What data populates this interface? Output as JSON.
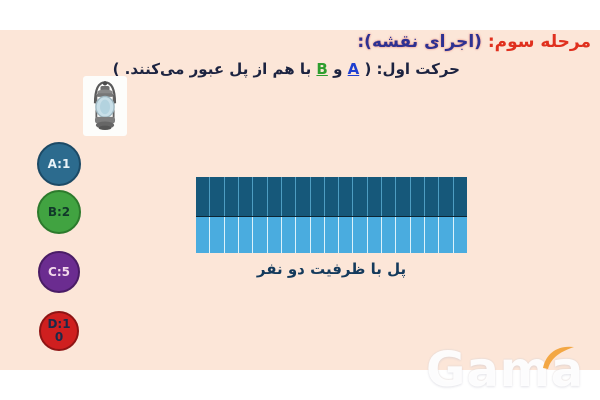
{
  "slide": {
    "background_color": "#fce6d8",
    "title": {
      "part1": "مرحله سوم:",
      "part2": " (اجرای نقشه):",
      "part1_color": "#e0301e",
      "part2_color": "#2e3192"
    },
    "subtitle": {
      "prefix": "حرکت اول: ( ",
      "person_a": "A",
      "separator": " و ",
      "person_b": "B",
      "suffix": " با هم از پل عبور می‌کنند. )",
      "text_color": "#1c2340",
      "person_a_color": "#1f3fd0",
      "person_b_color": "#2e9e2e"
    }
  },
  "tokens": [
    {
      "label": "A:1",
      "fill": "#2c6b8e",
      "border": "#1c4a66",
      "text_color": "#e9f3f8"
    },
    {
      "label": "B:2",
      "fill": "#41a341",
      "border": "#2c7a2c",
      "text_color": "#11382a"
    },
    {
      "label": "C:5",
      "fill": "#6b2c90",
      "border": "#4a1c66",
      "text_color": "#f2d7ea"
    },
    {
      "label": "D:1",
      "label2": "0",
      "fill": "#cf1f1f",
      "border": "#8f1414",
      "text_color": "#1a2a4a"
    }
  ],
  "bridge": {
    "stripe_count": 19,
    "deck_top_color": "#16587a",
    "deck_top_divider": "#4e9dc2",
    "deck_bottom_color": "#4aacdf",
    "deck_bottom_divider": "#dcf2fb",
    "midline_color": "#0c2533",
    "caption": "پل با ظرفیت دو نفر",
    "caption_color": "#143a5c"
  },
  "images": {
    "lantern": "oil-lantern"
  },
  "watermark": {
    "text": "Gama",
    "swoosh_color": "#f2a33c"
  }
}
